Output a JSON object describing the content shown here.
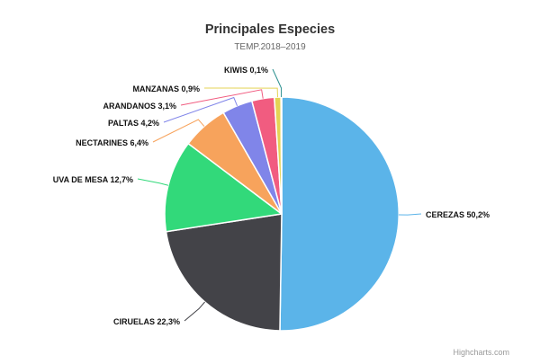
{
  "chart_data": {
    "type": "pie",
    "title": "Principales Especies",
    "subtitle": "TEMP.2018–2019",
    "slices": [
      {
        "label": "CEREZAS",
        "value": 50.2,
        "display": "CEREZAS 50,2%",
        "color": "#5BB4E9"
      },
      {
        "label": "CIRUELAS",
        "value": 22.3,
        "display": "CIRUELAS 22,3%",
        "color": "#434348"
      },
      {
        "label": "UVA DE MESA",
        "value": 12.7,
        "display": "UVA DE MESA 12,7%",
        "color": "#32D97A"
      },
      {
        "label": "NECTARINES",
        "value": 6.4,
        "display": "NECTARINES 6,4%",
        "color": "#F7A35C"
      },
      {
        "label": "PALTAS",
        "value": 4.2,
        "display": "PALTAS 4,2%",
        "color": "#8085E9"
      },
      {
        "label": "ARANDANOS",
        "value": 3.1,
        "display": "ARANDANOS 3,1%",
        "color": "#F15C80"
      },
      {
        "label": "MANZANAS",
        "value": 0.9,
        "display": "MANZANAS 0,9%",
        "color": "#E4D354"
      },
      {
        "label": "KIWIS",
        "value": 0.1,
        "display": "KIWIS 0,1%",
        "color": "#2B908F"
      }
    ]
  },
  "credits": "Highcharts.com"
}
